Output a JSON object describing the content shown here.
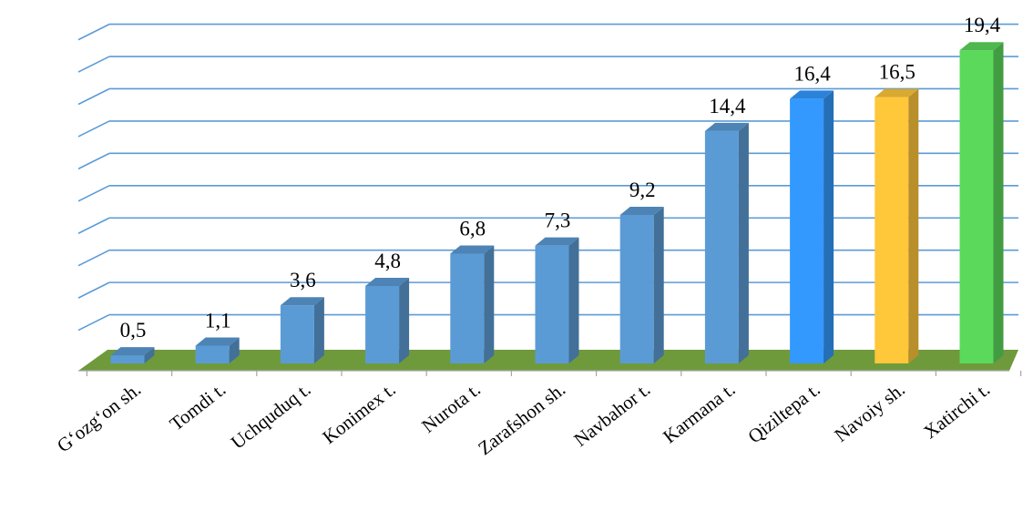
{
  "chart_data": {
    "type": "bar",
    "style": "3d-column",
    "categories": [
      "G‘ozg‘on sh.",
      "Tomdi t.",
      "Uchquduq t.",
      "Konimex t.",
      "Nurota t.",
      "Zarafshon sh.",
      "Navbahor t.",
      "Karmana t.",
      "Qiziltepa t.",
      "Navoiy sh.",
      "Xatirchi t."
    ],
    "values": [
      0.5,
      1.1,
      3.6,
      4.8,
      6.8,
      7.3,
      9.2,
      14.4,
      16.4,
      16.5,
      19.4
    ],
    "value_labels": [
      "0,5",
      "1,1",
      "3,6",
      "4,8",
      "6,8",
      "7,3",
      "9,2",
      "14,4",
      "16,4",
      "16,5",
      "19,4"
    ],
    "bar_colors": [
      "#5b9bd5",
      "#5b9bd5",
      "#5b9bd5",
      "#5b9bd5",
      "#5b9bd5",
      "#5b9bd5",
      "#5b9bd5",
      "#5b9bd5",
      "#3399ff",
      "#ffc73a",
      "#5bd95b"
    ],
    "floor_color": "#6f9a3c",
    "gridline_color": "#5b9bd5",
    "title": "",
    "xlabel": "",
    "ylabel": "",
    "ylim": [
      0,
      20
    ],
    "grid": true,
    "legend": "none"
  }
}
